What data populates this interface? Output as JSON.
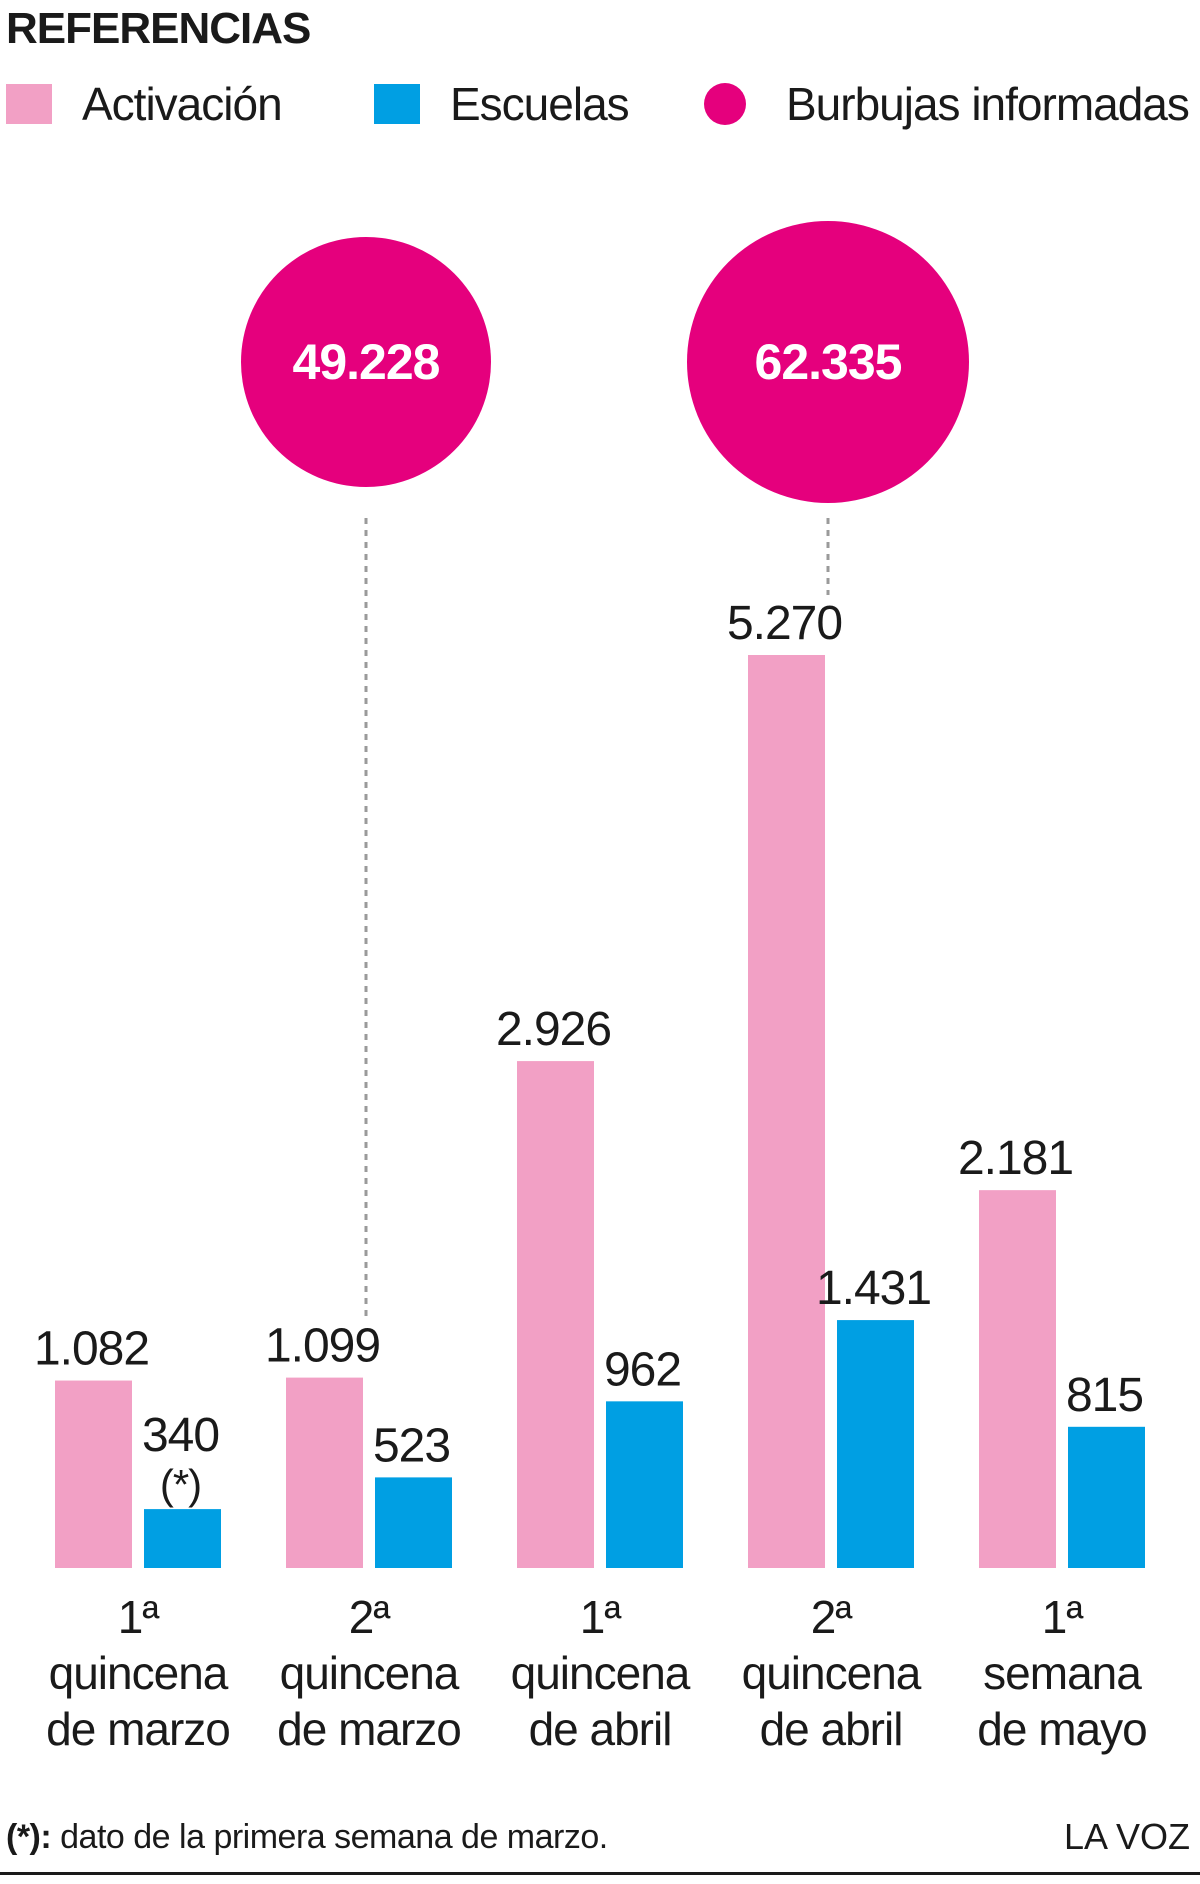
{
  "header": {
    "title": "REFERENCIAS"
  },
  "legend": {
    "activacion": {
      "label": "Activación",
      "color": "#f2a0c5"
    },
    "escuelas": {
      "label": "Escuelas",
      "color": "#009fe3"
    },
    "burbujas": {
      "label": "Burbujas informadas",
      "color": "#e5007d"
    }
  },
  "chart_data": {
    "type": "bar",
    "categories": [
      [
        "1ª",
        "quincena",
        "de marzo"
      ],
      [
        "2ª",
        "quincena",
        "de marzo"
      ],
      [
        "1ª",
        "quincena",
        "de abril"
      ],
      [
        "2ª",
        "quincena",
        "de abril"
      ],
      [
        "1ª",
        "semana",
        "de mayo"
      ]
    ],
    "series": [
      {
        "name": "Activación",
        "color": "#f2a0c5",
        "values": [
          1082,
          1099,
          2926,
          5270,
          2181
        ],
        "labels": [
          "1.082",
          "1.099",
          "2.926",
          "5.270",
          "2.181"
        ]
      },
      {
        "name": "Escuelas",
        "color": "#009fe3",
        "values": [
          340,
          523,
          962,
          1431,
          815
        ],
        "labels": [
          "340",
          "523",
          "962",
          "1.431",
          "815"
        ],
        "notes": [
          "(*)",
          "",
          "",
          "",
          ""
        ]
      }
    ],
    "bubbles": [
      {
        "category_index": 1,
        "value": 49228,
        "label": "49.228"
      },
      {
        "category_index": 3,
        "value": 62335,
        "label": "62.335"
      }
    ],
    "bubble_series": {
      "name": "Burbujas informadas",
      "color": "#e5007d"
    },
    "ylim": [
      0,
      5270
    ],
    "grid": false
  },
  "footer": {
    "note_marker": "(*):",
    "note_text": " dato de la primera semana de marzo.",
    "credit": "LA VOZ"
  }
}
